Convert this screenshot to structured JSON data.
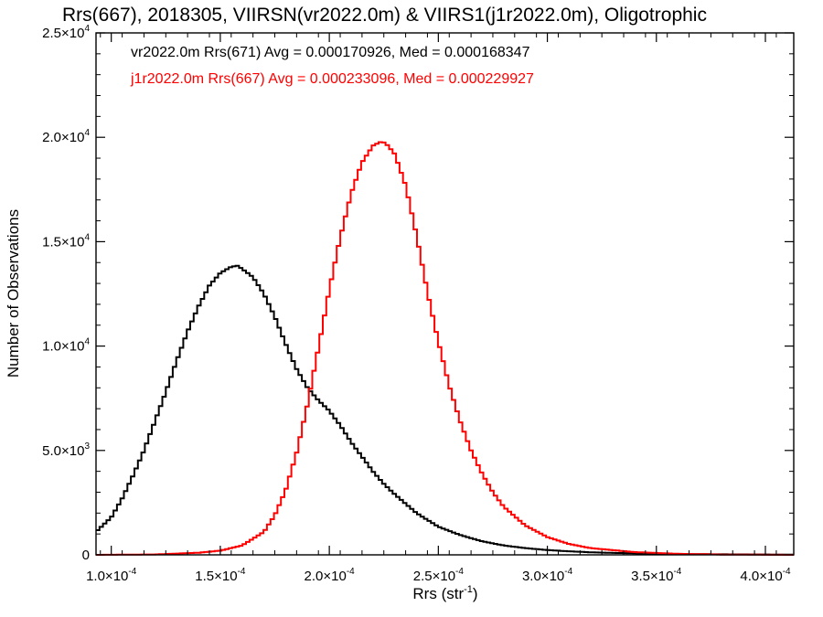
{
  "chart_data": {
    "type": "line",
    "title": "Rrs(667), 2018305, VIIRSN(vr2022.0m) & VIIRS1(j1r2022.0m), Oligotrophic",
    "xlabel_main": "Rrs (str",
    "xlabel_sup": "-1",
    "xlabel_end": ")",
    "ylabel": "Number of Observations",
    "xlim": [
      9.3e-05,
      0.000413
    ],
    "ylim": [
      0,
      25000
    ],
    "grid": false,
    "legend_placement": "top-left",
    "xticks": [
      {
        "value": 0.0001,
        "mant": "1.0",
        "exp": "-4"
      },
      {
        "value": 0.00015,
        "mant": "1.5",
        "exp": "-4"
      },
      {
        "value": 0.0002,
        "mant": "2.0",
        "exp": "-4"
      },
      {
        "value": 0.00025,
        "mant": "2.5",
        "exp": "-4"
      },
      {
        "value": 0.0003,
        "mant": "3.0",
        "exp": "-4"
      },
      {
        "value": 0.00035,
        "mant": "3.5",
        "exp": "-4"
      },
      {
        "value": 0.0004,
        "mant": "4.0",
        "exp": "-4"
      }
    ],
    "yticks": [
      {
        "value": 0,
        "mant": "0",
        "exp": ""
      },
      {
        "value": 5000,
        "mant": "5.0",
        "exp": "3"
      },
      {
        "value": 10000,
        "mant": "1.0",
        "exp": "4"
      },
      {
        "value": 15000,
        "mant": "1.5",
        "exp": "4"
      },
      {
        "value": 20000,
        "mant": "2.0",
        "exp": "4"
      },
      {
        "value": 25000,
        "mant": "2.5",
        "exp": "4"
      }
    ],
    "series": [
      {
        "label": "vr2022.0m Rrs(671) Avg = 0.000170926, Med = 0.000168347",
        "color": "#000000",
        "x": [
          9.3e-05,
          0.0001,
          0.000105,
          0.00011,
          0.000115,
          0.00012,
          0.000125,
          0.00013,
          0.000135,
          0.00014,
          0.000145,
          0.00015,
          0.000155,
          0.000158,
          0.00016,
          0.000165,
          0.00017,
          0.000175,
          0.00018,
          0.000185,
          0.00019,
          0.000195,
          0.0002,
          0.000205,
          0.00021,
          0.000215,
          0.00022,
          0.000225,
          0.00023,
          0.00024,
          0.00025,
          0.00026,
          0.00027,
          0.00028,
          0.00029,
          0.0003,
          0.00031,
          0.00032,
          0.00034,
          0.00036,
          0.00038,
          0.000413
        ],
        "y": [
          1100,
          1800,
          2700,
          3800,
          5000,
          6400,
          7800,
          9300,
          10700,
          11900,
          12900,
          13500,
          13800,
          13850,
          13700,
          13300,
          12500,
          11400,
          10100,
          8900,
          8000,
          7400,
          6900,
          6200,
          5400,
          4700,
          4000,
          3400,
          2900,
          2000,
          1350,
          950,
          650,
          450,
          320,
          230,
          170,
          120,
          70,
          40,
          25,
          10
        ]
      },
      {
        "label": "j1r2022.0m Rrs(667) Avg = 0.000233096, Med = 0.000229927",
        "color": "#ff0000",
        "x": [
          9.3e-05,
          0.00012,
          0.00014,
          0.00015,
          0.00016,
          0.00017,
          0.000175,
          0.00018,
          0.000185,
          0.00019,
          0.000195,
          0.0002,
          0.000205,
          0.00021,
          0.000215,
          0.00022,
          0.000224,
          0.000226,
          0.00023,
          0.000235,
          0.00024,
          0.000245,
          0.00025,
          0.000255,
          0.00026,
          0.000265,
          0.00027,
          0.000275,
          0.00028,
          0.00029,
          0.0003,
          0.00031,
          0.00032,
          0.00034,
          0.00036,
          0.00038,
          0.000413
        ],
        "y": [
          0,
          20,
          100,
          200,
          450,
          1100,
          1900,
          3100,
          4900,
          7200,
          9900,
          12700,
          15200,
          17300,
          18800,
          19600,
          19800,
          19700,
          19200,
          17700,
          15300,
          12600,
          10200,
          8100,
          6400,
          5000,
          3900,
          3000,
          2300,
          1400,
          850,
          520,
          320,
          130,
          50,
          15,
          0
        ]
      }
    ]
  }
}
